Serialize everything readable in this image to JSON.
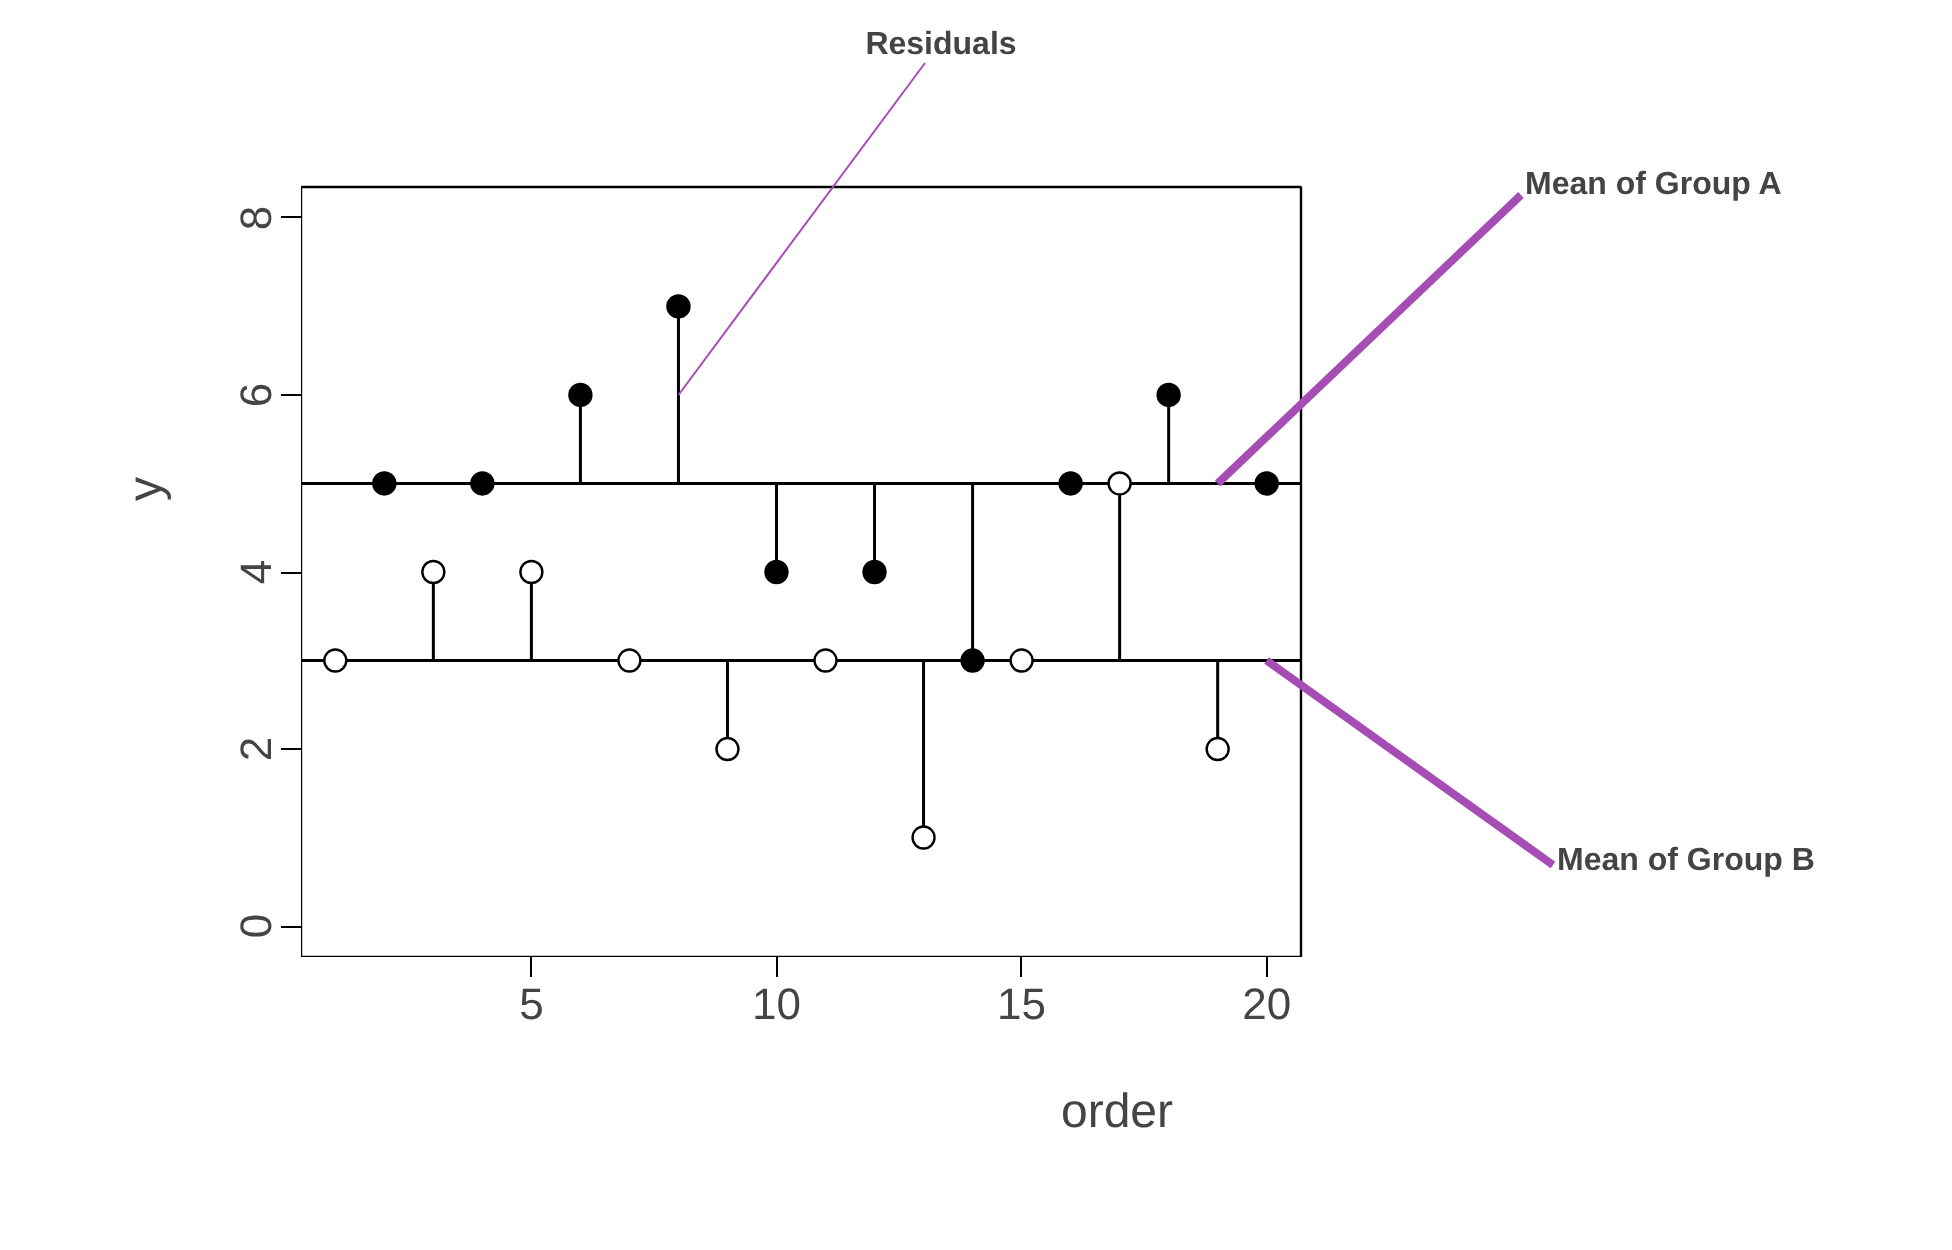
{
  "chart_data": {
    "type": "scatter",
    "xlabel": "order",
    "ylabel": "y",
    "xlim": [
      0.3,
      20.7
    ],
    "ylim": [
      -0.35,
      8.35
    ],
    "xticks": [
      5,
      10,
      15,
      20
    ],
    "yticks": [
      0,
      2,
      4,
      6,
      8
    ],
    "grid": false,
    "marker": "circle",
    "series": [
      {
        "color": "#000000",
        "x": [
          2,
          4,
          6,
          8,
          10,
          12,
          14,
          16,
          18,
          20
        ],
        "values": [
          5,
          5,
          6,
          7,
          4,
          4,
          3,
          5,
          6,
          5
        ],
        "errors": [
          [
            5,
            5
          ],
          [
            5,
            5
          ],
          [
            5,
            6
          ],
          [
            5,
            7
          ],
          [
            4,
            5
          ],
          [
            4,
            5
          ],
          [
            3,
            5
          ],
          [
            5,
            5
          ],
          [
            5,
            6
          ],
          [
            5,
            5
          ]
        ]
      },
      {
        "color": "#000000",
        "x": [
          1,
          3,
          5,
          7,
          9,
          11,
          13,
          15,
          17,
          19
        ],
        "values": [
          3,
          4,
          4,
          3,
          2,
          3,
          1,
          3,
          5,
          2
        ],
        "errors": [
          [
            3,
            3
          ],
          [
            3,
            4
          ],
          [
            3,
            4
          ],
          [
            3,
            3
          ],
          [
            2,
            3
          ],
          [
            3,
            3
          ],
          [
            1,
            3
          ],
          [
            3,
            3
          ],
          [
            3,
            5
          ],
          [
            2,
            3
          ]
        ]
      }
    ],
    "ref_lines": [
      {
        "axis": "y",
        "value": 5,
        "color": "#000000"
      },
      {
        "axis": "y",
        "value": 3,
        "color": "#000000"
      }
    ],
    "annotations": [
      {
        "text": "Residuals",
        "x": 8,
        "y": 6
      },
      {
        "text": "Mean of Group A",
        "x": 19,
        "y": 5
      },
      {
        "text": "Mean of Group B",
        "x": 20,
        "y": 3
      }
    ]
  }
}
